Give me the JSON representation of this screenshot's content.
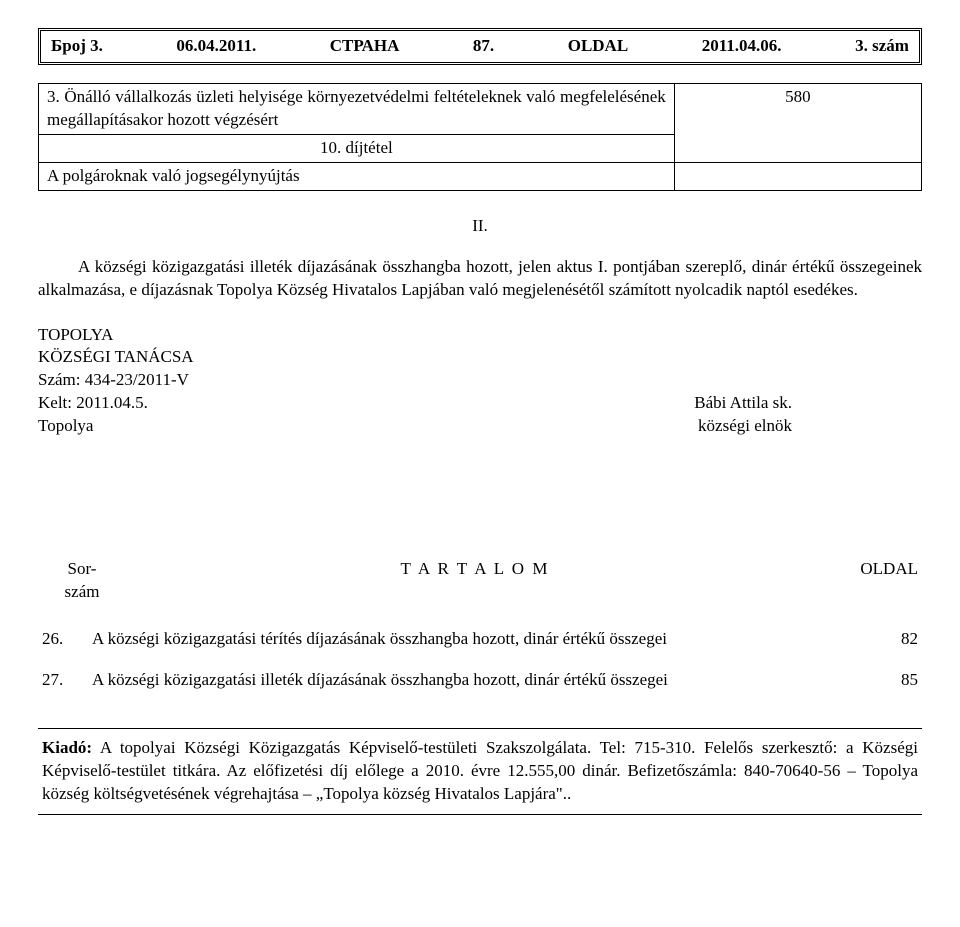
{
  "header": {
    "left1": "Број 3.",
    "left2": "06.04.2011.",
    "center1": "СТРАНА",
    "center2": "87.",
    "center3": "OLDAL",
    "right1": "2011.04.06.",
    "right2": "3. szám"
  },
  "fee_table": {
    "row1_num": "3.",
    "row1_desc": "Önálló vállalkozás üzleti helyisége környezetvédelmi feltételeknek való megfelelésének megállapításakor hozott végzésért",
    "row1_value": "580",
    "row2_label": "10. díjtétel",
    "row3_text": "A polgároknak való jogsegélynyújtás"
  },
  "section_num": "II.",
  "paragraph": "A községi közigazgatási illeték díjazásának összhangba hozott, jelen aktus I. pontjában szereplő, dinár értékű összegeinek alkalmazása, e díjazásnak Topolya Község Hivatalos Lapjában való megjelenésétől számított nyolcadik naptól esedékes.",
  "signers": {
    "l1": "TOPOLYA",
    "l2": "KÖZSÉGI TANÁCSA",
    "l3": "Szám: 434-23/2011-V",
    "l4": "Kelt: 2011.04.5.",
    "l5": "Topolya",
    "r4": "Bábi Attila sk.",
    "r5": "községi elnök"
  },
  "toc_header": {
    "sor1": "Sor-",
    "sor2": "szám",
    "title": "T A R T A L O M",
    "oldal": "OLDAL"
  },
  "toc": [
    {
      "num": "26.",
      "text": "A községi közigazgatási térítés díjazásának összhangba hozott, dinár értékű összegei",
      "page": "82"
    },
    {
      "num": "27.",
      "text": "A községi közigazgatási illeték díjazásának összhangba hozott, dinár értékű összegei",
      "page": "85"
    }
  ],
  "publisher": {
    "label": "Kiadó:",
    "text": "A topolyai Községi Közigazgatás Képviselő-testületi Szakszolgálata. Tel: 715-310. Felelős szerkesztő: a Községi Képviselő-testület titkára. Az előfizetési díj előlege a 2010. évre 12.555,00 dinár. Befizetőszámla: 840-70640-56 – Topolya község költségvetésének végrehajtása – „Topolya község Hivatalos Lapjára\".."
  }
}
